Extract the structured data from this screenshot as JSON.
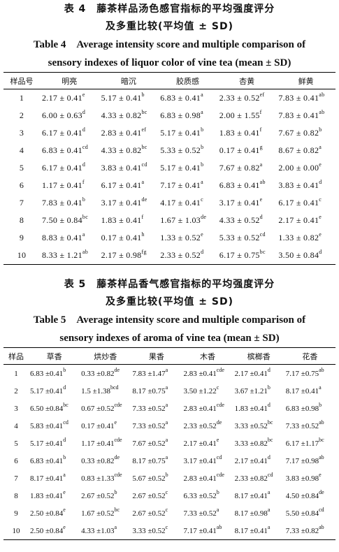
{
  "table4": {
    "title_zh_line1": "表 4　藤茶样品汤色感官指标的平均强度评分",
    "title_zh_line2": "及多重比较(平均值 ± SD)",
    "title_en_line1": "Table 4　Average intensity score and multiple comparison of",
    "title_en_line2": "sensory indexes of liquor color of vine tea (mean ± SD)",
    "headers": [
      "样品号",
      "明亮",
      "暗沉",
      "胶质感",
      "杏黄",
      "鲜黄"
    ],
    "rows": [
      {
        "id": "1",
        "cells": [
          [
            "2.17 ± 0.41",
            "e"
          ],
          [
            "5.17 ± 0.41",
            "b"
          ],
          [
            "6.83 ± 0.41",
            "a"
          ],
          [
            "2.33 ± 0.52",
            "ef"
          ],
          [
            "7.83 ± 0.41",
            "ab"
          ]
        ]
      },
      {
        "id": "2",
        "cells": [
          [
            "6.00 ± 0.63",
            "d"
          ],
          [
            "4.33 ± 0.82",
            "bc"
          ],
          [
            "6.83 ± 0.98",
            "a"
          ],
          [
            "2.00 ± 1.55",
            "f"
          ],
          [
            "7.83 ± 0.41",
            "ab"
          ]
        ]
      },
      {
        "id": "3",
        "cells": [
          [
            "6.17 ± 0.41",
            "d"
          ],
          [
            "2.83 ± 0.41",
            "ef"
          ],
          [
            "5.17 ± 0.41",
            "b"
          ],
          [
            "1.83 ± 0.41",
            "f"
          ],
          [
            "7.67 ± 0.82",
            "b"
          ]
        ]
      },
      {
        "id": "4",
        "cells": [
          [
            "6.83 ± 0.41",
            "cd"
          ],
          [
            "4.33 ± 0.82",
            "bc"
          ],
          [
            "5.33 ± 0.52",
            "b"
          ],
          [
            "0.17 ± 0.41",
            "g"
          ],
          [
            "8.67 ± 0.82",
            "a"
          ]
        ]
      },
      {
        "id": "5",
        "cells": [
          [
            "6.17 ± 0.41",
            "d"
          ],
          [
            "3.83 ± 0.41",
            "cd"
          ],
          [
            "5.17 ± 0.41",
            "b"
          ],
          [
            "7.67 ± 0.82",
            "a"
          ],
          [
            "2.00 ± 0.00",
            "e"
          ]
        ]
      },
      {
        "id": "6",
        "cells": [
          [
            "1.17 ± 0.41",
            "f"
          ],
          [
            "6.17 ± 0.41",
            "a"
          ],
          [
            "7.17 ± 0.41",
            "a"
          ],
          [
            "6.83 ± 0.41",
            "ab"
          ],
          [
            "3.83 ± 0.41",
            "d"
          ]
        ]
      },
      {
        "id": "7",
        "cells": [
          [
            "7.83 ± 0.41",
            "b"
          ],
          [
            "3.17 ± 0.41",
            "de"
          ],
          [
            "4.17 ± 0.41",
            "c"
          ],
          [
            "3.17 ± 0.41",
            "e"
          ],
          [
            "6.17 ± 0.41",
            "c"
          ]
        ]
      },
      {
        "id": "8",
        "cells": [
          [
            "7.50 ± 0.84",
            "bc"
          ],
          [
            "1.83 ± 0.41",
            "f"
          ],
          [
            "1.67 ± 1.03",
            "de"
          ],
          [
            "4.33 ± 0.52",
            "d"
          ],
          [
            "2.17 ± 0.41",
            "e"
          ]
        ]
      },
      {
        "id": "9",
        "cells": [
          [
            "8.83 ± 0.41",
            "a"
          ],
          [
            "0.17 ± 0.41",
            "h"
          ],
          [
            "1.33 ± 0.52",
            "e"
          ],
          [
            "5.33 ± 0.52",
            "cd"
          ],
          [
            "1.33 ± 0.82",
            "e"
          ]
        ]
      },
      {
        "id": "10",
        "cells": [
          [
            "8.33 ± 1.21",
            "ab"
          ],
          [
            "2.17 ± 0.98",
            "fg"
          ],
          [
            "2.33 ± 0.52",
            "d"
          ],
          [
            "6.17 ± 0.75",
            "bc"
          ],
          [
            "3.50 ± 0.84",
            "d"
          ]
        ]
      }
    ]
  },
  "table5": {
    "title_zh_line1": "表 5　藤茶样品香气感官指标的平均强度评分",
    "title_zh_line2": "及多重比较(平均值 ± SD)",
    "title_en_line1": "Table 5　Average intensity score and multiple comparison of",
    "title_en_line2": "sensory indexes of aroma of vine tea (mean ± SD)",
    "headers": [
      "样品",
      "草香",
      "烘炒香",
      "果香",
      "木香",
      "槟榔香",
      "花香"
    ],
    "rows": [
      {
        "id": "1",
        "cells": [
          [
            "6.83 ±0.41",
            "b"
          ],
          [
            "0.33 ±0.82",
            "de"
          ],
          [
            "7.83 ±1.47",
            "a"
          ],
          [
            "2.83 ±0.41",
            "cde"
          ],
          [
            "2.17 ±0.41",
            "d"
          ],
          [
            "7.17 ±0.75",
            "ab"
          ]
        ]
      },
      {
        "id": "2",
        "cells": [
          [
            "5.17 ±0.41",
            "d"
          ],
          [
            "1.5 ±1.38",
            "bcd"
          ],
          [
            "8.17 ±0.75",
            "a"
          ],
          [
            "3.50 ±1.22",
            "c"
          ],
          [
            "3.67 ±1.21",
            "b"
          ],
          [
            "8.17 ±0.41",
            "a"
          ]
        ]
      },
      {
        "id": "3",
        "cells": [
          [
            "6.50 ±0.84",
            "bc"
          ],
          [
            "0.67 ±0.52",
            "cde"
          ],
          [
            "7.33 ±0.52",
            "a"
          ],
          [
            "2.83 ±0.41",
            "cde"
          ],
          [
            "1.83 ±0.41",
            "d"
          ],
          [
            "6.83 ±0.98",
            "b"
          ]
        ]
      },
      {
        "id": "4",
        "cells": [
          [
            "5.83 ±0.41",
            "cd"
          ],
          [
            "0.17 ±0.41",
            "e"
          ],
          [
            "7.33 ±0.52",
            "a"
          ],
          [
            "2.33 ±0.52",
            "de"
          ],
          [
            "3.33 ±0.52",
            "bc"
          ],
          [
            "7.33 ±0.52",
            "ab"
          ]
        ]
      },
      {
        "id": "5",
        "cells": [
          [
            "5.17 ±0.41",
            "d"
          ],
          [
            "1.17 ±0.41",
            "cde"
          ],
          [
            "7.67 ±0.52",
            "a"
          ],
          [
            "2.17 ±0.41",
            "e"
          ],
          [
            "3.33 ±0.82",
            "bc"
          ],
          [
            "6.17 ±1.17",
            "bc"
          ]
        ]
      },
      {
        "id": "6",
        "cells": [
          [
            "6.83 ±0.41",
            "b"
          ],
          [
            "0.33 ±0.82",
            "de"
          ],
          [
            "8.17 ±0.75",
            "a"
          ],
          [
            "3.17 ±0.41",
            "cd"
          ],
          [
            "2.17 ±0.41",
            "d"
          ],
          [
            "7.17 ±0.98",
            "ab"
          ]
        ]
      },
      {
        "id": "7",
        "cells": [
          [
            "8.17 ±0.41",
            "a"
          ],
          [
            "0.83 ±1.33",
            "cde"
          ],
          [
            "5.67 ±0.52",
            "b"
          ],
          [
            "2.83 ±0.41",
            "cde"
          ],
          [
            "2.33 ±0.82",
            "cd"
          ],
          [
            "3.83 ±0.98",
            "e"
          ]
        ]
      },
      {
        "id": "8",
        "cells": [
          [
            "1.83 ±0.41",
            "e"
          ],
          [
            "2.67 ±0.52",
            "b"
          ],
          [
            "2.67 ±0.52",
            "c"
          ],
          [
            "6.33 ±0.52",
            "b"
          ],
          [
            "8.17 ±0.41",
            "a"
          ],
          [
            "4.50 ±0.84",
            "de"
          ]
        ]
      },
      {
        "id": "9",
        "cells": [
          [
            "2.50 ±0.84",
            "e"
          ],
          [
            "1.67 ±0.52",
            "bc"
          ],
          [
            "2.67 ±0.52",
            "c"
          ],
          [
            "7.33 ±0.52",
            "a"
          ],
          [
            "8.17 ±0.98",
            "a"
          ],
          [
            "5.50 ±0.84",
            "cd"
          ]
        ]
      },
      {
        "id": "10",
        "cells": [
          [
            "2.50 ±0.84",
            "e"
          ],
          [
            "4.33 ±1.03",
            "a"
          ],
          [
            "3.33 ±0.52",
            "c"
          ],
          [
            "7.17 ±0.41",
            "ab"
          ],
          [
            "8.17 ±0.41",
            "a"
          ],
          [
            "7.33 ±0.82",
            "ab"
          ]
        ]
      }
    ]
  }
}
